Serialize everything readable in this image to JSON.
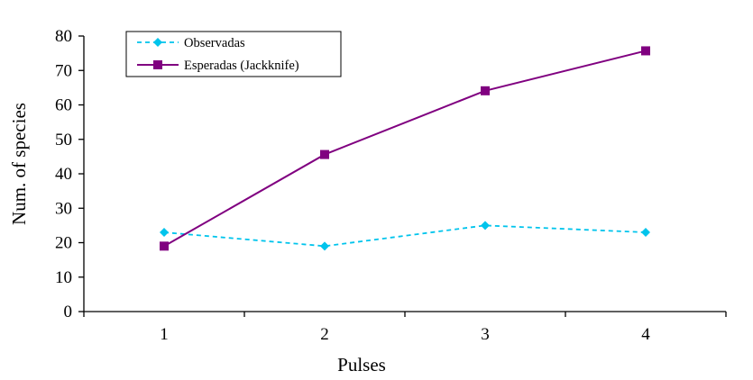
{
  "chart_data": {
    "type": "line",
    "title": "",
    "xlabel": "Pulses",
    "ylabel": "Num. of species",
    "categories": [
      "1",
      "2",
      "3",
      "4"
    ],
    "ylim": [
      0,
      80
    ],
    "yticks": [
      0,
      10,
      20,
      30,
      40,
      50,
      60,
      70,
      80
    ],
    "grid": false,
    "legend_position": "top-left",
    "series": [
      {
        "name": "Observadas",
        "values": [
          23,
          19,
          25,
          23
        ],
        "color": "#00c4ec",
        "line_style": "dashed",
        "marker": "diamond"
      },
      {
        "name": "Esperadas (Jackknife)",
        "values": [
          19,
          45.6,
          64.1,
          75.7
        ],
        "color": "#800080",
        "line_style": "solid",
        "marker": "square"
      }
    ]
  }
}
